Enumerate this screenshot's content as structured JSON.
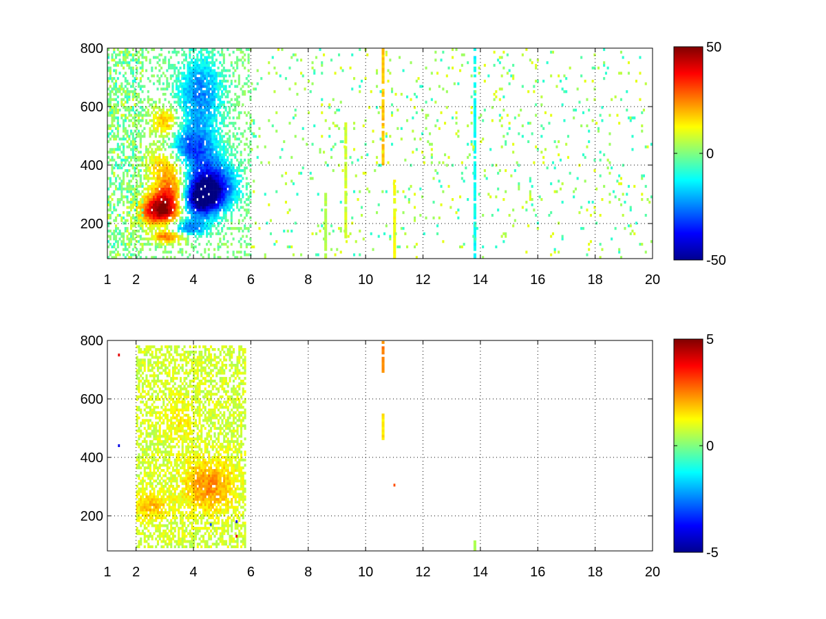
{
  "figure": {
    "background": "#ffffff"
  },
  "colormap": "jet",
  "chart_data": [
    {
      "type": "heatmap",
      "title": "",
      "xlabel": "",
      "ylabel": "",
      "xlim": [
        1,
        20
      ],
      "ylim": [
        80,
        800
      ],
      "xticks": [
        1,
        2,
        4,
        6,
        8,
        10,
        12,
        14,
        16,
        18,
        20
      ],
      "xtick_labels": [
        "1",
        "2",
        "4",
        "6",
        "8",
        "10",
        "12",
        "14",
        "16",
        "18",
        "20"
      ],
      "yticks": [
        200,
        400,
        600,
        800
      ],
      "ytick_labels": [
        "200",
        "400",
        "600",
        "800"
      ],
      "grid": true,
      "colorbar": {
        "min": -50,
        "max": 50,
        "ticks": [
          50,
          0,
          -50
        ],
        "tick_labels": [
          "50",
          "0",
          "-50"
        ]
      },
      "dense_region": {
        "x": [
          1,
          6
        ],
        "y": [
          80,
          800
        ]
      },
      "features": [
        {
          "x": 2.8,
          "y": 240,
          "value": 45,
          "sx": 0.5,
          "sy": 35
        },
        {
          "x": 3.3,
          "y": 300,
          "value": 38,
          "sx": 0.5,
          "sy": 45
        },
        {
          "x": 3.1,
          "y": 400,
          "value": 22,
          "sx": 0.5,
          "sy": 40
        },
        {
          "x": 3.0,
          "y": 540,
          "value": 22,
          "sx": 0.35,
          "sy": 40
        },
        {
          "x": 3.1,
          "y": 150,
          "value": 28,
          "sx": 0.4,
          "sy": 15
        },
        {
          "x": 4.1,
          "y": 280,
          "value": -50,
          "sx": 0.55,
          "sy": 45
        },
        {
          "x": 4.6,
          "y": 330,
          "value": -38,
          "sx": 0.6,
          "sy": 55
        },
        {
          "x": 3.9,
          "y": 450,
          "value": -30,
          "sx": 0.6,
          "sy": 55
        },
        {
          "x": 4.2,
          "y": 640,
          "value": -25,
          "sx": 0.55,
          "sy": 90
        },
        {
          "x": 3.8,
          "y": 180,
          "value": -25,
          "sx": 0.45,
          "sy": 20
        }
      ],
      "stripes": [
        {
          "x": 10.6,
          "value": 18,
          "y": [
            400,
            800
          ]
        },
        {
          "x": 11.0,
          "value": 12,
          "y": [
            80,
            350
          ]
        },
        {
          "x": 13.8,
          "value": -12,
          "y": [
            80,
            800
          ]
        },
        {
          "x": 9.3,
          "value": 8,
          "y": [
            150,
            550
          ]
        },
        {
          "x": 8.6,
          "value": 6,
          "y": [
            80,
            300
          ]
        }
      ],
      "sparse_values": [
        -8,
        -4,
        3,
        6,
        10
      ]
    },
    {
      "type": "heatmap",
      "title": "",
      "xlabel": "",
      "ylabel": "",
      "xlim": [
        1,
        20
      ],
      "ylim": [
        80,
        800
      ],
      "xticks": [
        1,
        2,
        4,
        6,
        8,
        10,
        12,
        14,
        16,
        18,
        20
      ],
      "xtick_labels": [
        "1",
        "2",
        "4",
        "6",
        "8",
        "10",
        "12",
        "14",
        "16",
        "18",
        "20"
      ],
      "yticks": [
        200,
        400,
        600,
        800
      ],
      "ytick_labels": [
        "200",
        "400",
        "600",
        "800"
      ],
      "grid": true,
      "colorbar": {
        "min": -5,
        "max": 5,
        "ticks": [
          5,
          0,
          -5
        ],
        "tick_labels": [
          "5",
          "0",
          "-5"
        ]
      },
      "dense_region": {
        "x": [
          2,
          5.8
        ],
        "y": [
          90,
          780
        ]
      },
      "base_value": 0.8,
      "features": [
        {
          "x": 2.5,
          "y": 230,
          "value": 1.2,
          "sx": 0.4,
          "sy": 30
        },
        {
          "x": 4.5,
          "y": 300,
          "value": 1.6,
          "sx": 0.6,
          "sy": 60
        },
        {
          "x": 3.5,
          "y": 520,
          "value": 0.5,
          "sx": 0.4,
          "sy": 60
        }
      ],
      "stripes": [
        {
          "x": 10.6,
          "value": 2.5,
          "y": [
            690,
            790
          ]
        },
        {
          "x": 10.6,
          "value": 1.5,
          "y": [
            460,
            550
          ]
        },
        {
          "x": 13.8,
          "value": 0.6,
          "y": [
            80,
            110
          ]
        }
      ],
      "points": [
        {
          "x": 5.5,
          "y": 180,
          "value": -4
        },
        {
          "x": 5.5,
          "y": 130,
          "value": 4
        },
        {
          "x": 11.0,
          "y": 305,
          "value": 3
        },
        {
          "x": 1.4,
          "y": 750,
          "value": 4
        },
        {
          "x": 1.4,
          "y": 440,
          "value": -4
        },
        {
          "x": 4.6,
          "y": 170,
          "value": -3
        }
      ]
    }
  ]
}
